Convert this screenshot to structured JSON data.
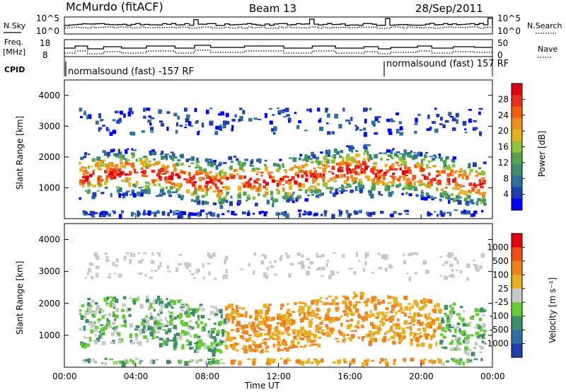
{
  "header": {
    "station": "McMurdo (fitACF)",
    "beam": "Beam 13",
    "date": "28/Sep/2011"
  },
  "nsky_panel": {
    "left_label": "N.Sky",
    "right_label": "N.Search",
    "ticks_left": [
      "10^5",
      "10^0"
    ],
    "ticks_right": [
      "10^5",
      "10^0"
    ]
  },
  "freq_panel": {
    "left_label_1": "Freq.",
    "left_label_2": "[MHz]",
    "right_label": "Nave",
    "ticks_left": [
      "18",
      "8"
    ],
    "ticks_right": [
      "50",
      "0"
    ]
  },
  "cpid_panel": {
    "label": "CPID",
    "segments": [
      {
        "text": "normalsound (fast) -157 RF",
        "start_hour": 0
      },
      {
        "text": "normalsound (fast) 157 RF",
        "start_hour": 18
      }
    ]
  },
  "chart_data": [
    {
      "type": "heatmap",
      "name": "power",
      "ylabel": "Slant Range [km]",
      "y_ticks": [
        "4000",
        "3000",
        "2000",
        "1000"
      ],
      "ylim": [
        0,
        4500
      ],
      "colorbar": {
        "label": "Power [dB]",
        "tick_labels": [
          "28",
          "24",
          "20",
          "16",
          "12",
          "8",
          "4"
        ],
        "range": [
          0,
          30
        ],
        "colors": [
          "#0000ff",
          "#1f3fb0",
          "#2f6f9f",
          "#3c8f6f",
          "#55a24f",
          "#8fc13a",
          "#e8b020",
          "#f09020",
          "#f06010",
          "#e8301a",
          "#e00010"
        ]
      }
    },
    {
      "type": "heatmap",
      "name": "velocity",
      "ylabel": "Slant Range [km]",
      "y_ticks": [
        "4000",
        "3000",
        "2000",
        "1000"
      ],
      "ylim": [
        0,
        4500
      ],
      "colorbar": {
        "label": "Velocity [m s⁻¹]",
        "tick_labels": [
          "1000",
          "500",
          "100",
          "25",
          "-25",
          "-100",
          "-500",
          "-1000"
        ],
        "colors": [
          "#1f3fb0",
          "#2e6fa8",
          "#3d8f6a",
          "#66cc33",
          "#c8c8c8",
          "#e8b020",
          "#f08020",
          "#f05010",
          "#e00010"
        ]
      }
    }
  ],
  "x_axis": {
    "ticks": [
      "00:00",
      "04:00",
      "08:00",
      "12:00",
      "16:00",
      "20:00",
      "00:00"
    ],
    "label": "Time UT",
    "xlim_hours": [
      0,
      24
    ]
  }
}
